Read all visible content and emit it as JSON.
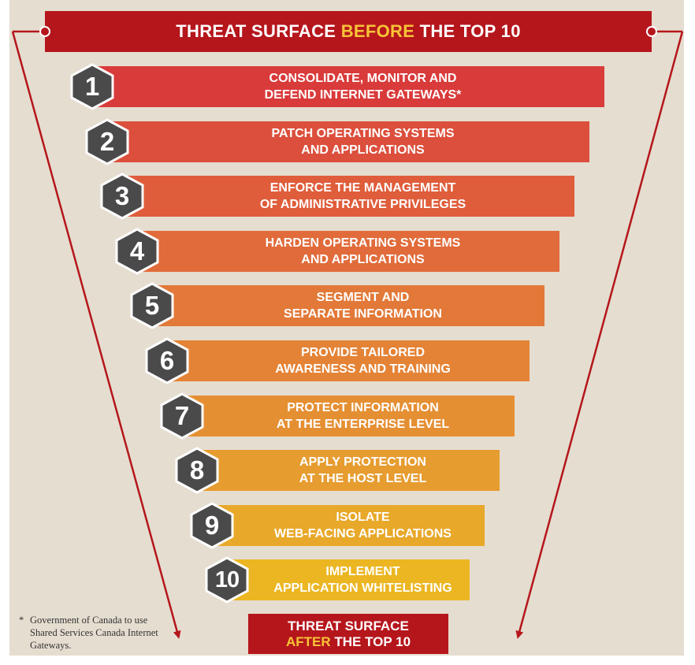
{
  "header": {
    "before_prefix": "THREAT SURFACE ",
    "before_highlight": "BEFORE",
    "before_suffix": " THE TOP 10"
  },
  "steps": [
    {
      "number": "1",
      "line1": "CONSOLIDATE, MONITOR AND",
      "line2": "DEFEND INTERNET GATEWAYS*",
      "color": "#d93a3a"
    },
    {
      "number": "2",
      "line1": "PATCH OPERATING SYSTEMS",
      "line2": "AND APPLICATIONS",
      "color": "#dc4f3c"
    },
    {
      "number": "3",
      "line1": "ENFORCE THE MANAGEMENT",
      "line2": "OF ADMINISTRATIVE PRIVILEGES",
      "color": "#df5d3b"
    },
    {
      "number": "4",
      "line1": "HARDEN OPERATING SYSTEMS",
      "line2": "AND APPLICATIONS",
      "color": "#e16b3a"
    },
    {
      "number": "5",
      "line1": "SEGMENT AND",
      "line2": "SEPARATE INFORMATION",
      "color": "#e27938"
    },
    {
      "number": "6",
      "line1": "PROVIDE TAILORED",
      "line2": "AWARENESS AND TRAINING",
      "color": "#e48336"
    },
    {
      "number": "7",
      "line1": "PROTECT INFORMATION",
      "line2": "AT THE ENTERPRISE LEVEL",
      "color": "#e58f33"
    },
    {
      "number": "8",
      "line1": "APPLY PROTECTION",
      "line2": "AT THE HOST LEVEL",
      "color": "#e69c2f"
    },
    {
      "number": "9",
      "line1": "ISOLATE",
      "line2": "WEB-FACING APPLICATIONS",
      "color": "#e8a829"
    },
    {
      "number": "10",
      "line1": "IMPLEMENT",
      "line2": "APPLICATION WHITELISTING",
      "color": "#ebb622"
    }
  ],
  "footer": {
    "after_line1": "THREAT SURFACE",
    "after_highlight": "AFTER",
    "after_suffix": " THE TOP 10"
  },
  "footnote": {
    "mark": "*",
    "text": "Government of Canada to use Shared Services Canada Internet Gateways."
  },
  "colors": {
    "banner": "#b5161c",
    "highlight": "#f7c437",
    "badge": "#4a4a4a",
    "arrow": "#b5161c",
    "background": "#e5ddd0"
  },
  "icons": {
    "badge_shape": "hexagon",
    "arrow_left": "arrow-down-left",
    "arrow_right": "arrow-down-right"
  }
}
